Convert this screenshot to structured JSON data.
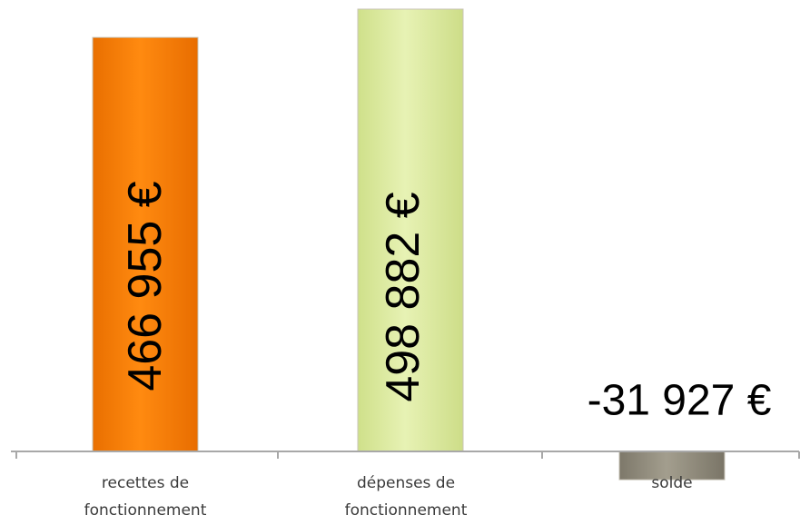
{
  "chart_data": {
    "type": "bar",
    "title": "",
    "xlabel": "",
    "ylabel": "",
    "categories": [
      "recettes de fonctionnement",
      "dépenses de fonctionnement",
      "solde"
    ],
    "category_lines": [
      [
        "recettes de",
        "fonctionnement"
      ],
      [
        "dépenses de",
        "fonctionnement"
      ],
      [
        "solde"
      ]
    ],
    "values": [
      466955,
      498882,
      -31927
    ],
    "value_labels": [
      "466 955 €",
      "498 882 €",
      "-31 927 €"
    ],
    "colors": [
      "#ff7f00",
      "#dceaa0",
      "#8f8a7a"
    ],
    "grid": false,
    "legend": "none"
  }
}
